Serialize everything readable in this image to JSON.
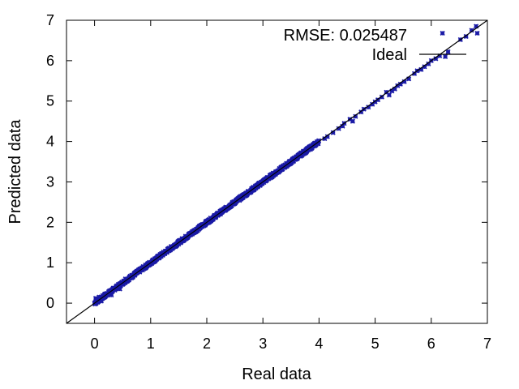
{
  "chart_data": {
    "type": "scatter",
    "title": "",
    "xlabel": "Real data",
    "ylabel": "Predicted data",
    "xlim": [
      -0.5,
      7
    ],
    "ylim": [
      -0.5,
      7
    ],
    "xticks": [
      0,
      1,
      2,
      3,
      4,
      5,
      6,
      7
    ],
    "yticks": [
      0,
      1,
      2,
      3,
      4,
      5,
      6,
      7
    ],
    "grid": false,
    "legend_position": "top-right",
    "annotation": "RMSE: 0.025487",
    "colors": {
      "points": "#1a1aa6",
      "ideal_line": "#000000"
    },
    "series": [
      {
        "kind": "points",
        "marker": "cross",
        "generated_band": {
          "x_range": [
            0.0,
            4.0
          ],
          "slope": 1.0,
          "intercept": 0.0,
          "y_spread": 0.04
        },
        "points": [
          [
            0.02,
            0.12
          ],
          [
            0.05,
            0.02
          ],
          [
            0.08,
            0.15
          ],
          [
            0.12,
            0.05
          ],
          [
            0.18,
            0.22
          ],
          [
            0.25,
            0.28
          ],
          [
            0.3,
            0.2
          ],
          [
            0.38,
            0.4
          ],
          [
            0.45,
            0.35
          ],
          [
            0.55,
            0.6
          ],
          [
            4.1,
            4.07
          ],
          [
            4.15,
            4.12
          ],
          [
            4.25,
            4.22
          ],
          [
            4.35,
            4.32
          ],
          [
            4.42,
            4.38
          ],
          [
            4.45,
            4.45
          ],
          [
            4.55,
            4.55
          ],
          [
            4.6,
            4.5
          ],
          [
            4.65,
            4.62
          ],
          [
            4.75,
            4.73
          ],
          [
            4.8,
            4.8
          ],
          [
            4.88,
            4.85
          ],
          [
            4.95,
            4.92
          ],
          [
            5.0,
            4.98
          ],
          [
            5.05,
            5.03
          ],
          [
            5.12,
            5.1
          ],
          [
            5.2,
            5.22
          ],
          [
            5.25,
            5.15
          ],
          [
            5.3,
            5.25
          ],
          [
            5.35,
            5.3
          ],
          [
            5.4,
            5.38
          ],
          [
            5.45,
            5.42
          ],
          [
            5.52,
            5.48
          ],
          [
            5.6,
            5.55
          ],
          [
            5.7,
            5.68
          ],
          [
            5.75,
            5.75
          ],
          [
            5.82,
            5.78
          ],
          [
            5.88,
            5.85
          ],
          [
            5.95,
            5.92
          ],
          [
            6.0,
            6.0
          ],
          [
            6.08,
            6.05
          ],
          [
            6.15,
            6.12
          ],
          [
            6.2,
            6.68
          ],
          [
            6.25,
            6.1
          ],
          [
            6.3,
            6.22
          ],
          [
            6.52,
            6.52
          ],
          [
            6.62,
            6.6
          ],
          [
            6.72,
            6.75
          ],
          [
            6.8,
            6.85
          ],
          [
            6.82,
            6.68
          ]
        ]
      },
      {
        "kind": "line",
        "name": "Ideal",
        "x": [
          -0.5,
          7
        ],
        "y": [
          -0.5,
          7
        ]
      }
    ]
  }
}
